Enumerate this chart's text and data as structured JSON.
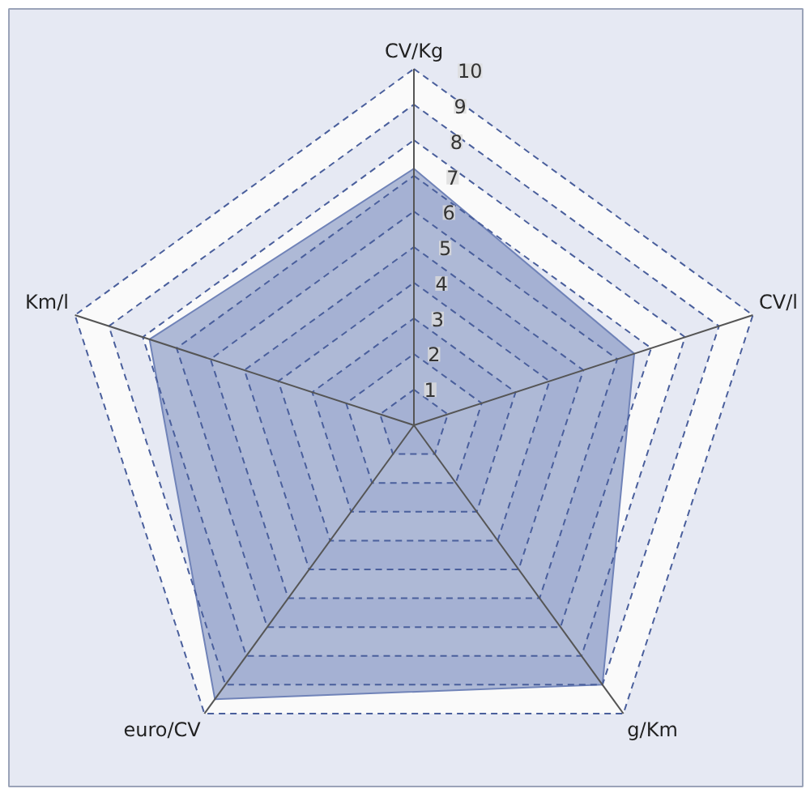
{
  "chart_data": {
    "type": "radar",
    "categories": [
      "CV/Kg",
      "CV/l",
      "g/Km",
      "euro/CV",
      "Km/l"
    ],
    "series": [
      {
        "color": "#7083b8",
        "values": [
          7.2,
          6.5,
          9,
          9.5,
          7.8
        ]
      }
    ],
    "ylim": [
      0,
      10
    ],
    "yticks": [
      1,
      2,
      3,
      4,
      5,
      6,
      7,
      8,
      9,
      10
    ],
    "grid": true
  }
}
